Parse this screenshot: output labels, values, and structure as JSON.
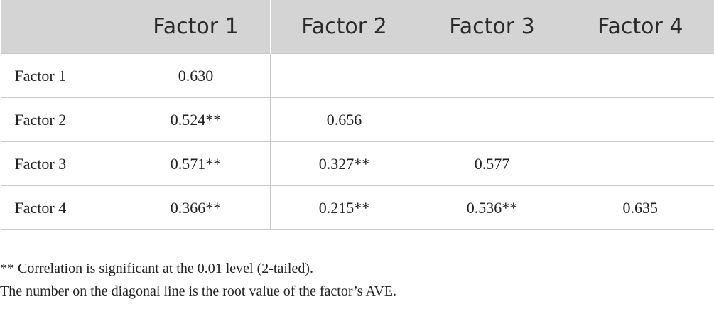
{
  "table": {
    "header": [
      "Factor 1",
      "Factor 2",
      "Factor 3",
      "Factor 4"
    ],
    "rows": [
      [
        "Factor 1",
        "0.630"
      ],
      [
        "Factor 2",
        "0.524**",
        "0.656"
      ],
      [
        "Factor 3",
        "0.571**",
        "0.327**",
        "0.577"
      ],
      [
        "Factor 4",
        "0.366**",
        "0.215**",
        "0.536**",
        "0.635"
      ]
    ]
  },
  "notes": [
    "** Correlation is significant at the 0.01 level (2-tailed).",
    "The number on the diagonal line is the root value of the factor’s AVE."
  ]
}
